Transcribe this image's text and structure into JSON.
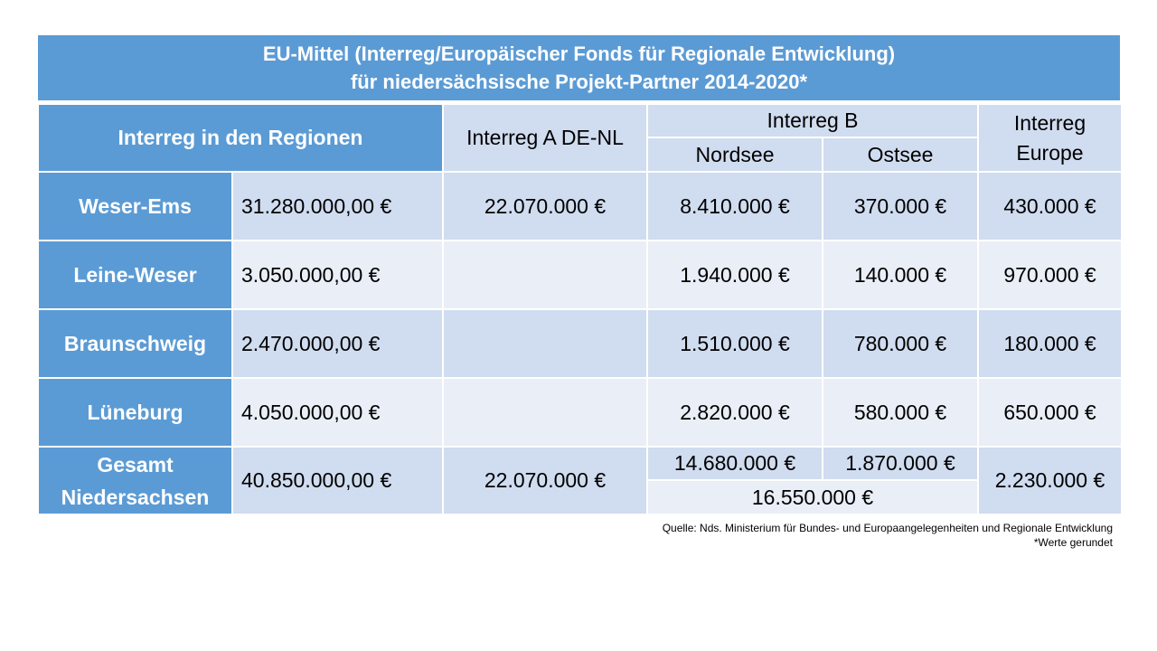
{
  "title": {
    "line1": "EU-Mittel (Interreg/Europäischer Fonds für Regionale Entwicklung)",
    "line2": "für niedersächsische Projekt-Partner 2014-2020*"
  },
  "headers": {
    "regions": "Interreg in den Regionen",
    "interreg_a": "Interreg A DE-NL",
    "interreg_b": "Interreg B",
    "nordsee": "Nordsee",
    "ostsee": "Ostsee",
    "europe_line1": "Interreg",
    "europe_line2": "Europe"
  },
  "rows": [
    {
      "region": "Weser-Ems",
      "regionen": "31.280.000,00 €",
      "interreg_a": "22.070.000 €",
      "nordsee": "8.410.000 €",
      "ostsee": "370.000 €",
      "europe": "430.000 €"
    },
    {
      "region": "Leine-Weser",
      "regionen": "3.050.000,00 €",
      "interreg_a": "",
      "nordsee": "1.940.000 €",
      "ostsee": "140.000 €",
      "europe": "970.000 €"
    },
    {
      "region": "Braunschweig",
      "regionen": "2.470.000,00 €",
      "interreg_a": "",
      "nordsee": "1.510.000 €",
      "ostsee": "780.000 €",
      "europe": "180.000 €"
    },
    {
      "region": "Lüneburg",
      "regionen": "4.050.000,00 €",
      "interreg_a": "",
      "nordsee": "2.820.000 €",
      "ostsee": "580.000 €",
      "europe": "650.000 €"
    }
  ],
  "total": {
    "label_line1": "Gesamt",
    "label_line2": "Niedersachsen",
    "regionen": "40.850.000,00 €",
    "interreg_a": "22.070.000 €",
    "nordsee": "14.680.000 €",
    "ostsee": "1.870.000 €",
    "interreg_b_sum": "16.550.000 €",
    "europe": "2.230.000 €"
  },
  "source": {
    "line1": "Quelle: Nds. Ministerium für Bundes- und Europaangelegenheiten  und Regionale Entwicklung",
    "line2": "*Werte gerundet"
  },
  "colors": {
    "header_blue": "#5b9bd5",
    "row_dark": "#d0dcef",
    "row_light": "#e9eef7"
  }
}
